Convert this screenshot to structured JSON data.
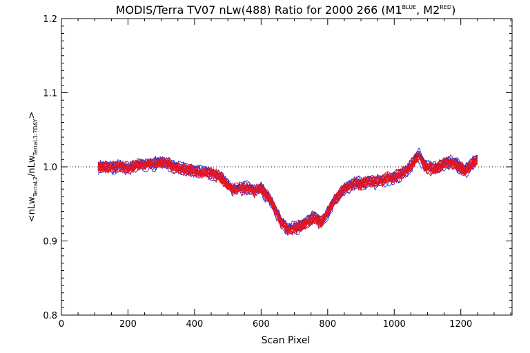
{
  "chart_data": {
    "type": "line",
    "title_main": "MODIS/Terra TV07 nLw(488) Ratio for 2000 266 (M1",
    "title_sup1": "BLUE",
    "title_mid": ", M2",
    "title_sup2": "RED",
    "title_end": ")",
    "xlabel": "Scan Pixel",
    "ylabel_parts": {
      "open": "<nLw",
      "sub1": "TerraL2",
      "mid": "/nLw",
      "sub2": "TerraL3:7DAY",
      "close": ">"
    },
    "xlim": [
      0,
      1354
    ],
    "ylim": [
      0.8,
      1.2
    ],
    "x_ticks": [
      0,
      200,
      400,
      600,
      800,
      1000,
      1200
    ],
    "x_tick_labels": [
      "0",
      "200",
      "400",
      "600",
      "800",
      "1000",
      "1200"
    ],
    "y_ticks": [
      0.8,
      0.9,
      1.0,
      1.1,
      1.2
    ],
    "y_tick_labels": [
      "0.8",
      "0.9",
      "1.0",
      "1.1",
      "1.2"
    ],
    "reference_line": 1.0,
    "series_colors": {
      "M1": "#1f2fd6",
      "M2": "#e8141e"
    },
    "x": [
      110,
      140,
      170,
      200,
      230,
      260,
      290,
      310,
      330,
      360,
      390,
      420,
      450,
      480,
      500,
      520,
      550,
      580,
      600,
      620,
      640,
      660,
      680,
      700,
      720,
      740,
      760,
      780,
      800,
      820,
      850,
      880,
      900,
      920,
      950,
      980,
      1000,
      1020,
      1040,
      1060,
      1075,
      1090,
      1110,
      1130,
      1150,
      1170,
      1190,
      1210,
      1230,
      1250
    ],
    "values_base": [
      1.0,
      0.999,
      1.0,
      0.998,
      1.002,
      1.004,
      1.005,
      1.006,
      1.002,
      0.998,
      0.995,
      0.993,
      0.992,
      0.985,
      0.976,
      0.97,
      0.972,
      0.968,
      0.971,
      0.96,
      0.945,
      0.925,
      0.915,
      0.918,
      0.92,
      0.926,
      0.932,
      0.925,
      0.938,
      0.955,
      0.97,
      0.978,
      0.977,
      0.98,
      0.98,
      0.985,
      0.985,
      0.99,
      0.996,
      1.008,
      1.015,
      1.002,
      0.999,
      0.998,
      1.004,
      1.006,
      1.002,
      0.995,
      1.002,
      1.01
    ]
  }
}
